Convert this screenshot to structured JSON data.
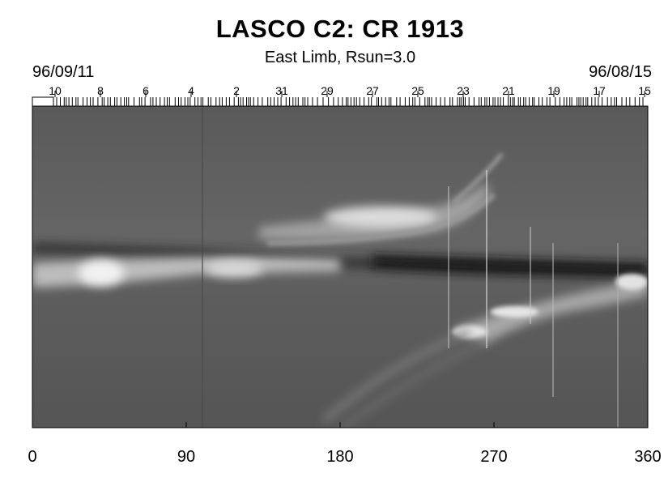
{
  "chart_data": {
    "type": "heatmap",
    "title": "LASCO C2: CR 1913",
    "subtitle": "East Limb, Rsun=3.0",
    "date_start": "96/09/11",
    "date_end": "96/08/15",
    "x_ticks": [
      "0",
      "90",
      "180",
      "270",
      "360"
    ],
    "xlim": [
      0,
      360
    ],
    "day_ticks": [
      "10",
      "8",
      "6",
      "4",
      "2",
      "31",
      "29",
      "27",
      "25",
      "23",
      "21",
      "19",
      "17",
      "15"
    ],
    "colormap": "grayscale",
    "xlabel": "",
    "ylabel": ""
  }
}
